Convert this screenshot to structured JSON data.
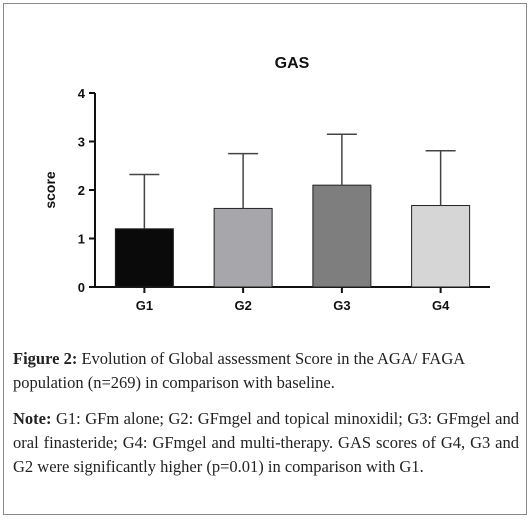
{
  "chart_data": {
    "type": "bar",
    "title": "GAS",
    "xlabel": "",
    "ylabel": "score",
    "categories": [
      "G1",
      "G2",
      "G3",
      "G4"
    ],
    "values": [
      1.2,
      1.62,
      2.1,
      1.68
    ],
    "error_upper": [
      2.32,
      2.75,
      3.15,
      2.81
    ],
    "ylim": [
      0,
      4
    ],
    "yticks": [
      0,
      1,
      2,
      3,
      4
    ],
    "grid": false,
    "bar_colors": [
      "#0a0a0a",
      "#a7a6ab",
      "#7e7e7e",
      "#d6d6d6"
    ]
  },
  "caption": {
    "figure_label": "Figure 2:",
    "figure_text": "Evolution of Global assessment Score in the AGA/ FAGA population (n=269) in comparison with baseline.",
    "note_label": "Note:",
    "note_text": "G1: GFm alone; G2: GFmgel and topical minoxidil; G3: GFmgel and oral finasteride; G4: GFmgel and multi-therapy. GAS scores of G4, G3 and G2 were significantly higher (p=0.01) in comparison with G1."
  }
}
